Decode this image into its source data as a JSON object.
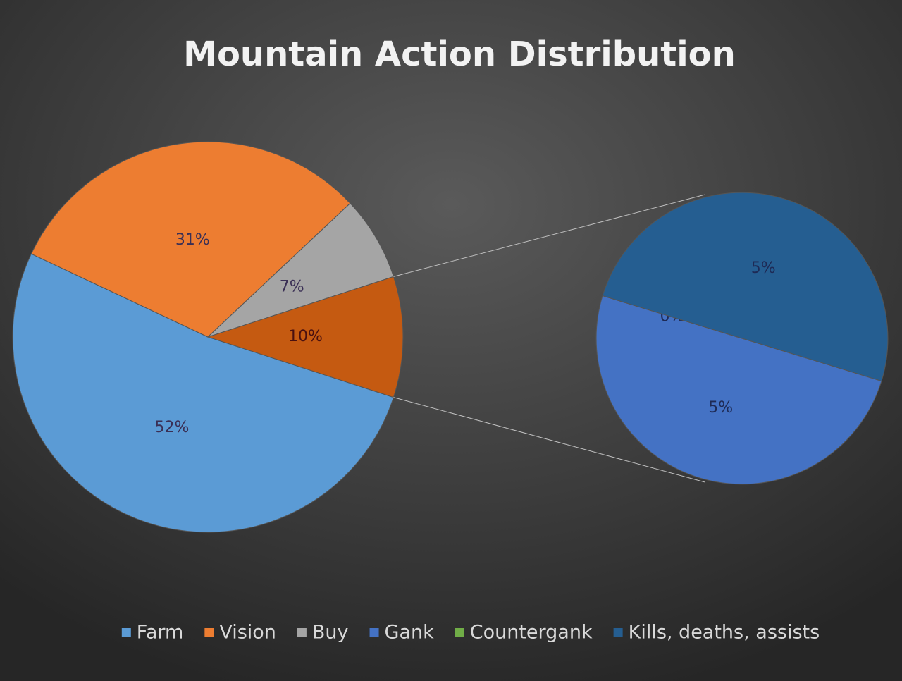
{
  "chart_data": {
    "type": "pie-of-pie",
    "title": "Mountain Action Distribution",
    "categories": [
      "Farm",
      "Vision",
      "Buy",
      "Gank",
      "Countergank",
      "Kills, deaths, assists"
    ],
    "values": [
      52,
      31,
      7,
      5,
      0,
      5
    ],
    "value_labels": [
      "52%",
      "31%",
      "7%",
      "5%",
      "0%",
      "5%"
    ],
    "colors": [
      "#5b9bd5",
      "#ed7d31",
      "#a5a5a5",
      "#4472c4",
      "#70ad47",
      "#255e91"
    ],
    "split_last": 3,
    "other": {
      "value": 10,
      "label": "10%",
      "color": "#c55a11"
    },
    "legend": "bottom"
  }
}
